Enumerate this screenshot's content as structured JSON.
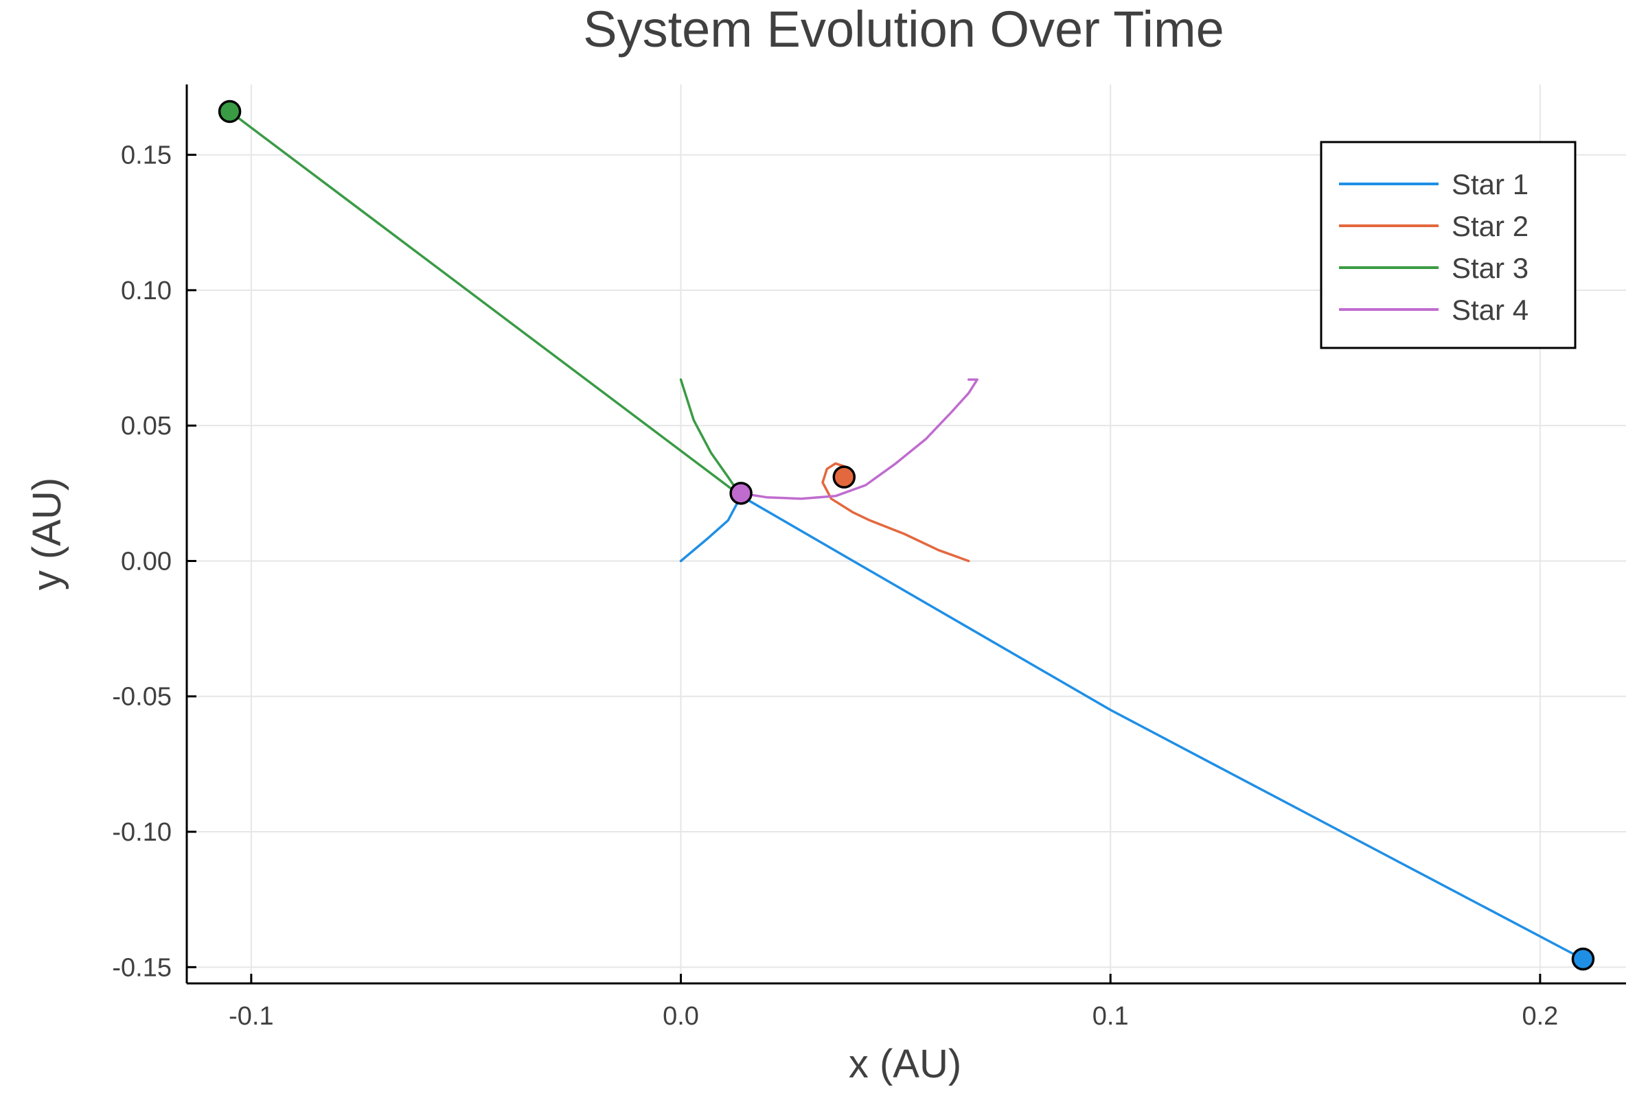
{
  "chart_data": {
    "type": "line",
    "title": "System Evolution Over Time",
    "xlabel": "x (AU)",
    "ylabel": "y (AU)",
    "xlim": [
      -0.115,
      0.22
    ],
    "ylim": [
      -0.156,
      0.176
    ],
    "xticks": [
      -0.1,
      0.0,
      0.1,
      0.2
    ],
    "xtick_labels": [
      "-0.1",
      "0.0",
      "0.1",
      "0.2"
    ],
    "yticks": [
      -0.15,
      -0.1,
      -0.05,
      0.0,
      0.05,
      0.1,
      0.15
    ],
    "ytick_labels": [
      "-0.15",
      "-0.10",
      "-0.05",
      "0.00",
      "0.05",
      "0.10",
      "0.15"
    ],
    "grid": true,
    "legend_position": "top-right",
    "series": [
      {
        "name": "Star 1",
        "color": "#1f8fe6",
        "points": [
          [
            0.0,
            0.0
          ],
          [
            0.006,
            0.008
          ],
          [
            0.011,
            0.015
          ],
          [
            0.013,
            0.021
          ],
          [
            0.014,
            0.024
          ],
          [
            0.1,
            -0.055
          ],
          [
            0.21,
            -0.147
          ]
        ],
        "final": [
          0.21,
          -0.147
        ]
      },
      {
        "name": "Star 2",
        "color": "#e3683e",
        "points": [
          [
            0.067,
            0.0
          ],
          [
            0.06,
            0.004
          ],
          [
            0.052,
            0.01
          ],
          [
            0.044,
            0.015
          ],
          [
            0.04,
            0.018
          ],
          [
            0.035,
            0.023
          ],
          [
            0.033,
            0.029
          ],
          [
            0.034,
            0.034
          ],
          [
            0.036,
            0.036
          ],
          [
            0.038,
            0.035
          ],
          [
            0.038,
            0.031
          ]
        ],
        "final": [
          0.038,
          0.031
        ]
      },
      {
        "name": "Star 3",
        "color": "#3a9b45",
        "points": [
          [
            0.0,
            0.067
          ],
          [
            0.003,
            0.052
          ],
          [
            0.007,
            0.04
          ],
          [
            0.011,
            0.031
          ],
          [
            0.014,
            0.024
          ],
          [
            -0.105,
            0.166
          ]
        ],
        "final": [
          -0.105,
          0.166
        ]
      },
      {
        "name": "Star 4",
        "color": "#c06ccf",
        "points": [
          [
            0.014,
            0.025
          ],
          [
            0.02,
            0.0235
          ],
          [
            0.028,
            0.023
          ],
          [
            0.036,
            0.024
          ],
          [
            0.043,
            0.028
          ],
          [
            0.05,
            0.036
          ],
          [
            0.057,
            0.045
          ],
          [
            0.063,
            0.055
          ],
          [
            0.067,
            0.062
          ],
          [
            0.069,
            0.067
          ],
          [
            0.067,
            0.067
          ]
        ],
        "final": [
          0.014,
          0.025
        ]
      }
    ]
  }
}
